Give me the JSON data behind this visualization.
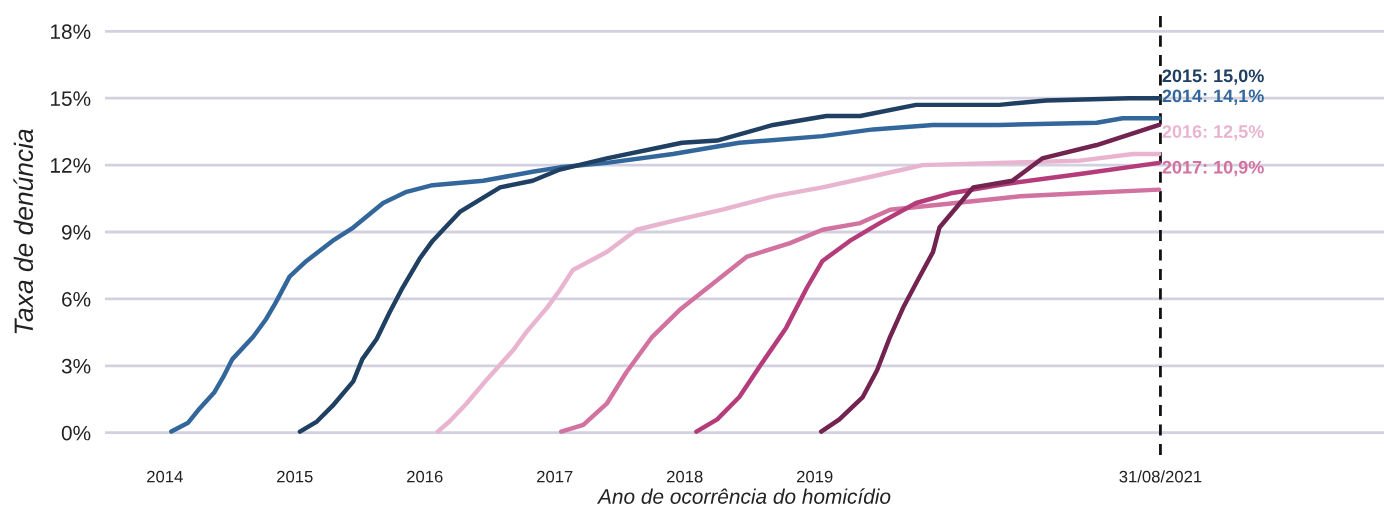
{
  "chart_data": {
    "type": "line",
    "xlabel": "Ano de ocorrência do homicídio",
    "ylabel": "Taxa de denúncia",
    "xlim": [
      2013.54,
      2023.38
    ],
    "ylim": [
      -1,
      19
    ],
    "xticks": [
      2014,
      2015,
      2016,
      2017,
      2018,
      2019,
      {
        "value": 2021.66,
        "label": "31/08/2021"
      }
    ],
    "yticks": [
      {
        "value": 0,
        "label": "0%"
      },
      {
        "value": 3,
        "label": "3%"
      },
      {
        "value": 6,
        "label": "6%"
      },
      {
        "value": 9,
        "label": "9%"
      },
      {
        "value": 12,
        "label": "12%"
      },
      {
        "value": 15,
        "label": "15%"
      },
      {
        "value": 18,
        "label": "18%"
      }
    ],
    "grid": "y",
    "ref_lines": [
      {
        "axis": "x",
        "value": 2021.66,
        "color": "#111111",
        "line_style": "dashed"
      }
    ],
    "annotations": [
      "2014: 14,1%",
      "2015: 15,0%",
      "2016: 12,5%",
      "2017: 10,9%"
    ],
    "series": [
      {
        "color": "#33679c",
        "x": [
          2014.05,
          2014.18,
          2014.27,
          2014.38,
          2014.45,
          2014.52,
          2014.68,
          2014.78,
          2014.85,
          2014.96,
          2015.09,
          2015.29,
          2015.45,
          2015.68,
          2015.86,
          2016.06,
          2016.45,
          2016.83,
          2017.04,
          2017.4,
          2017.91,
          2018.42,
          2019.06,
          2019.45,
          2019.91,
          2020.42,
          2021.17,
          2021.37,
          2021.65
        ],
        "values": [
          0.05,
          0.45,
          1.1,
          1.8,
          2.5,
          3.3,
          4.3,
          5.1,
          5.8,
          7.0,
          7.7,
          8.6,
          9.2,
          10.3,
          10.8,
          11.1,
          11.3,
          11.7,
          11.9,
          12.1,
          12.5,
          13.0,
          13.3,
          13.6,
          13.8,
          13.8,
          13.9,
          14.1,
          14.1
        ]
      },
      {
        "color": "#1f4063",
        "x": [
          2015.04,
          2015.17,
          2015.29,
          2015.45,
          2015.52,
          2015.63,
          2015.73,
          2015.82,
          2015.96,
          2016.06,
          2016.27,
          2016.58,
          2016.83,
          2017.04,
          2017.4,
          2017.98,
          2018.25,
          2018.68,
          2019.09,
          2019.35,
          2019.78,
          2020.42,
          2020.78,
          2021.42,
          2021.65
        ],
        "values": [
          0.05,
          0.5,
          1.2,
          2.3,
          3.3,
          4.2,
          5.4,
          6.4,
          7.8,
          8.6,
          9.9,
          11.0,
          11.3,
          11.8,
          12.3,
          13.0,
          13.1,
          13.8,
          14.2,
          14.2,
          14.7,
          14.7,
          14.9,
          15.0,
          15.0
        ]
      },
      {
        "color": "#e8b4cf",
        "x": [
          2016.1,
          2016.19,
          2016.32,
          2016.48,
          2016.68,
          2016.78,
          2016.94,
          2017.04,
          2017.14,
          2017.4,
          2017.63,
          2017.91,
          2018.29,
          2018.68,
          2019.06,
          2019.45,
          2019.83,
          2020.42,
          2021.04,
          2021.45,
          2021.65
        ],
        "values": [
          0.05,
          0.5,
          1.3,
          2.4,
          3.7,
          4.5,
          5.6,
          6.4,
          7.3,
          8.1,
          9.1,
          9.5,
          10.0,
          10.6,
          11.0,
          11.5,
          12.0,
          12.1,
          12.2,
          12.5,
          12.5
        ]
      },
      {
        "color": "#d272a0",
        "x": [
          2017.05,
          2017.22,
          2017.4,
          2017.55,
          2017.75,
          2017.96,
          2018.22,
          2018.48,
          2018.81,
          2019.06,
          2019.35,
          2019.58,
          2020.42,
          2020.58,
          2021.09,
          2021.65
        ],
        "values": [
          0.05,
          0.35,
          1.3,
          2.7,
          4.3,
          5.5,
          6.7,
          7.9,
          8.5,
          9.1,
          9.4,
          10.0,
          10.5,
          10.6,
          10.75,
          10.9
        ]
      },
      {
        "color": "#b53c7a",
        "x": [
          2018.09,
          2018.25,
          2018.42,
          2018.58,
          2018.78,
          2018.94,
          2019.06,
          2019.27,
          2019.5,
          2019.78,
          2020.06,
          2020.42,
          2020.52,
          2021.04,
          2021.65
        ],
        "values": [
          0.05,
          0.6,
          1.6,
          3.0,
          4.7,
          6.5,
          7.7,
          8.6,
          9.4,
          10.3,
          10.75,
          11.1,
          11.2,
          11.6,
          12.1
        ]
      },
      {
        "color": "#722350",
        "x": [
          2019.05,
          2019.19,
          2019.37,
          2019.48,
          2019.58,
          2019.68,
          2019.78,
          2019.91,
          2019.96,
          2020.09,
          2020.22,
          2020.42,
          2020.52,
          2020.75,
          2021.17,
          2021.65
        ],
        "values": [
          0.05,
          0.6,
          1.6,
          2.8,
          4.3,
          5.6,
          6.7,
          8.1,
          9.2,
          10.1,
          11.0,
          11.2,
          11.3,
          12.3,
          12.9,
          13.8
        ]
      }
    ]
  }
}
